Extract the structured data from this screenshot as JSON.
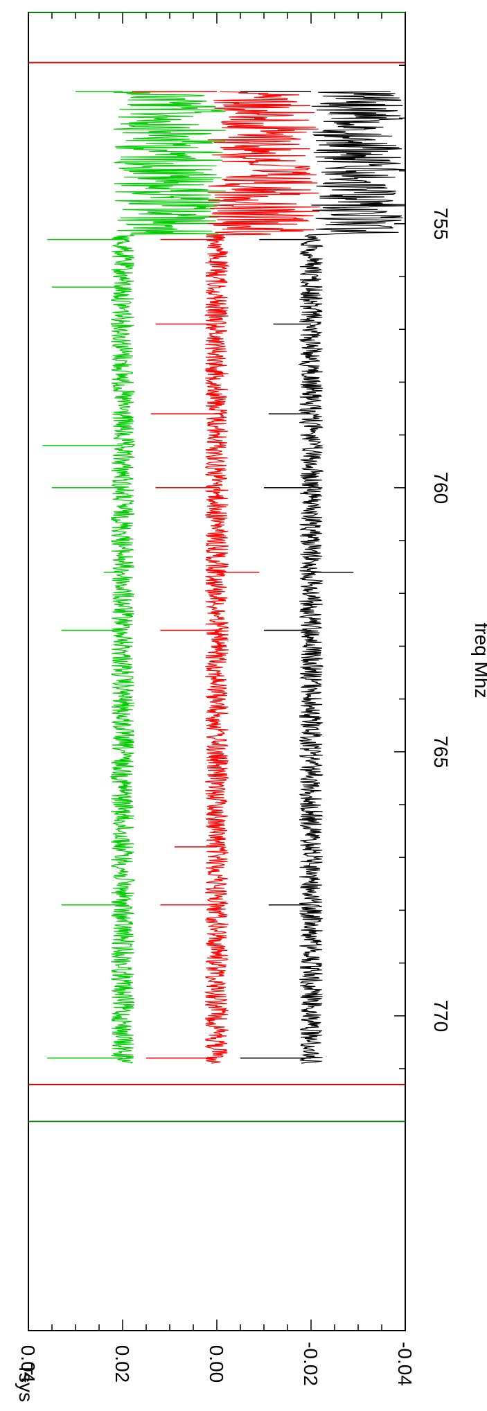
{
  "chart_data": {
    "type": "line",
    "orientation": "rotated-90-clockwise",
    "xlabel": "freq Mhz",
    "ylabel": "Tsys",
    "xlim": [
      752.0,
      772.0
    ],
    "ylim": [
      -0.04,
      0.04
    ],
    "x_ticks": [
      "755",
      "760",
      "765",
      "770"
    ],
    "y_ticks": [
      "0.04",
      "0.02",
      "0.00",
      "-0.02",
      "-0.04"
    ],
    "grid": false,
    "legend": "none",
    "series": [
      {
        "color": "#00cc00",
        "baseline": 0.02,
        "noise": 0.0025,
        "dense_start": 752.5,
        "dense_end": 755.2,
        "dense_amp": 0.012,
        "spikes": [
          [
            752.5,
            0.03
          ],
          [
            755.3,
            0.036
          ],
          [
            756.2,
            0.035
          ],
          [
            759.2,
            0.037
          ],
          [
            760.0,
            0.035
          ],
          [
            761.6,
            0.024
          ],
          [
            762.7,
            0.033
          ],
          [
            767.9,
            0.033
          ],
          [
            770.8,
            0.036
          ]
        ]
      },
      {
        "color": "#ff0000",
        "baseline": 0.0,
        "noise": 0.0025,
        "dense_start": 752.5,
        "dense_end": 755.2,
        "dense_amp": 0.012,
        "spikes": [
          [
            752.5,
            0.018
          ],
          [
            755.3,
            0.012
          ],
          [
            756.9,
            0.013
          ],
          [
            758.6,
            0.014
          ],
          [
            760.0,
            0.013
          ],
          [
            761.6,
            -0.009
          ],
          [
            762.7,
            0.012
          ],
          [
            766.8,
            0.009
          ],
          [
            767.9,
            0.012
          ],
          [
            770.8,
            0.015
          ]
        ]
      },
      {
        "color": "#000000",
        "baseline": -0.02,
        "noise": 0.0025,
        "dense_start": 752.5,
        "dense_end": 755.2,
        "dense_amp": 0.01,
        "spikes": [
          [
            752.5,
            -0.005
          ],
          [
            755.3,
            -0.009
          ],
          [
            756.9,
            -0.012
          ],
          [
            758.6,
            -0.011
          ],
          [
            760.0,
            -0.01
          ],
          [
            761.6,
            -0.029
          ],
          [
            762.7,
            -0.01
          ],
          [
            767.9,
            -0.011
          ],
          [
            770.8,
            -0.005
          ]
        ]
      }
    ],
    "frame_lines": [
      {
        "x": 751.0,
        "color": "#008800"
      },
      {
        "x": 751.95,
        "color": "#cc0000"
      },
      {
        "x": 771.3,
        "color": "#cc0000"
      },
      {
        "x": 772.0,
        "color": "#008800"
      }
    ]
  }
}
